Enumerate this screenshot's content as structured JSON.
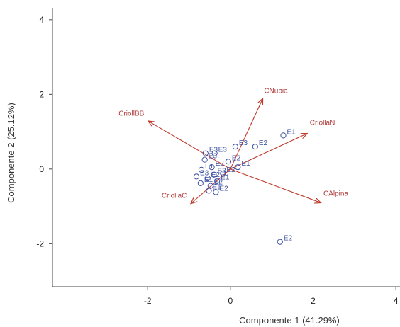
{
  "chart_data": {
    "type": "scatter",
    "title": "",
    "xlabel": "Componente 1 (41.29%)",
    "ylabel": "Componente 2 (25.12%)",
    "xlim": [
      -4.3,
      4.1
    ],
    "ylim": [
      -3.15,
      4.3
    ],
    "x_ticks": [
      -2,
      0,
      2,
      4
    ],
    "y_ticks": [
      -2,
      0,
      2,
      4
    ],
    "grid": false,
    "legend": "none",
    "colors": {
      "arrows": "#c0392b",
      "points": "#3b4fa0",
      "axes": "#444444"
    },
    "loadings": [
      {
        "name": "CNubia",
        "x": 0.78,
        "y": 1.88
      },
      {
        "name": "CriollBB",
        "x": -1.98,
        "y": 1.28
      },
      {
        "name": "CriollaN",
        "x": 1.85,
        "y": 0.95
      },
      {
        "name": "CAlpina",
        "x": 2.18,
        "y": -0.9
      },
      {
        "name": "CriollaC",
        "x": -0.95,
        "y": -0.92
      }
    ],
    "scores": [
      {
        "label": "E1",
        "x": 1.28,
        "y": 0.9
      },
      {
        "label": "E2",
        "x": 0.6,
        "y": 0.6
      },
      {
        "label": "E3",
        "x": 0.12,
        "y": 0.6
      },
      {
        "label": "E2",
        "x": 1.2,
        "y": -1.95
      },
      {
        "label": "E1",
        "x": 0.18,
        "y": 0.05
      },
      {
        "label": "E2",
        "x": -0.05,
        "y": 0.2
      },
      {
        "label": "E3",
        "x": -0.38,
        "y": 0.42
      },
      {
        "label": "E3",
        "x": -0.6,
        "y": 0.42
      },
      {
        "label": "E3",
        "x": -0.62,
        "y": 0.25
      },
      {
        "label": "E2",
        "x": -0.45,
        "y": 0.05
      },
      {
        "label": "E1",
        "x": -0.7,
        "y": -0.02
      },
      {
        "label": "E3",
        "x": -0.82,
        "y": -0.2
      },
      {
        "label": "E2",
        "x": -0.55,
        "y": -0.25
      },
      {
        "label": "E1",
        "x": -0.32,
        "y": -0.32
      },
      {
        "label": "E2",
        "x": -0.48,
        "y": -0.45
      },
      {
        "label": "E1",
        "x": -0.72,
        "y": -0.38
      },
      {
        "label": "E3",
        "x": -0.4,
        "y": -0.15
      },
      {
        "label": "E2",
        "x": -0.18,
        "y": -0.12
      },
      {
        "label": "E1",
        "x": -0.52,
        "y": -0.58
      },
      {
        "label": "E2",
        "x": -0.35,
        "y": -0.62
      }
    ]
  }
}
